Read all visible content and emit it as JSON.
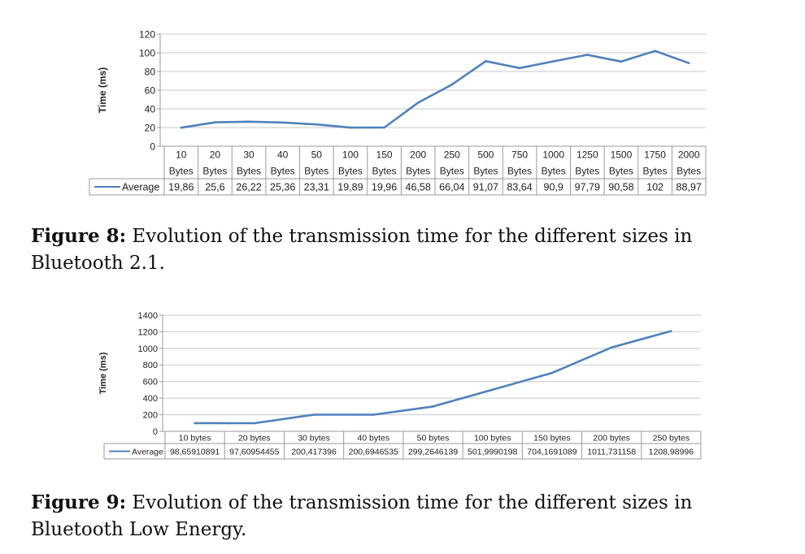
{
  "chart_data": [
    {
      "type": "line",
      "title": "",
      "ylabel": "Time (ms)",
      "xlabel": "",
      "ylim": [
        0,
        120
      ],
      "yticks": [
        0,
        20,
        40,
        60,
        80,
        100,
        120
      ],
      "grid": true,
      "legend": "data-table-left",
      "line_color": "#4f81bd",
      "categories": [
        [
          "10",
          "Bytes"
        ],
        [
          "20",
          "Bytes"
        ],
        [
          "30",
          "Bytes"
        ],
        [
          "40",
          "Bytes"
        ],
        [
          "50",
          "Bytes"
        ],
        [
          "100",
          "Bytes"
        ],
        [
          "150",
          "Bytes"
        ],
        [
          "200",
          "Bytes"
        ],
        [
          "250",
          "Bytes"
        ],
        [
          "500",
          "Bytes"
        ],
        [
          "750",
          "Bytes"
        ],
        [
          "1000",
          "Bytes"
        ],
        [
          "1250",
          "Bytes"
        ],
        [
          "1500",
          "Bytes"
        ],
        [
          "1750",
          "Bytes"
        ],
        [
          "2000",
          "Bytes"
        ]
      ],
      "series": [
        {
          "name": "Average",
          "values": [
            19.86,
            25.6,
            26.22,
            25.36,
            23.31,
            19.89,
            19.96,
            46.58,
            66.04,
            91.07,
            83.64,
            90.9,
            97.79,
            90.58,
            102,
            88.97
          ],
          "labels": [
            "19,86",
            "25,6",
            "26,22",
            "25,36",
            "23,31",
            "19,89",
            "19,96",
            "46,58",
            "66,04",
            "91,07",
            "83,64",
            "90,9",
            "97,79",
            "90,58",
            "102",
            "88,97"
          ]
        }
      ]
    },
    {
      "type": "line",
      "title": "",
      "ylabel": "Time (ms)",
      "xlabel": "",
      "ylim": [
        0,
        1400
      ],
      "yticks": [
        0,
        200,
        400,
        600,
        800,
        1000,
        1200,
        1400
      ],
      "grid": true,
      "legend": "data-table-left",
      "line_color": "#4f81bd",
      "categories": [
        [
          "10 bytes"
        ],
        [
          "20 bytes"
        ],
        [
          "30 bytes"
        ],
        [
          "40 bytes"
        ],
        [
          "50 bytes"
        ],
        [
          "100 bytes"
        ],
        [
          "150 bytes"
        ],
        [
          "200 bytes"
        ],
        [
          "250 bytes"
        ]
      ],
      "series": [
        {
          "name": "Average",
          "values": [
            98.65910891,
            97.60954455,
            200.417396,
            200.6946535,
            299.2646139,
            501.9990198,
            704.1691089,
            1011.731158,
            1208.98996
          ],
          "labels": [
            "98,65910891",
            "97,60954455",
            "200,417396",
            "200,6946535",
            "299,2646139",
            "501,9990198",
            "704,1691089",
            "1011,731158",
            "1208,98996"
          ]
        }
      ]
    }
  ],
  "captions": [
    {
      "label": "Figure 8:",
      "text": " Evolution of the transmission time for the different sizes in Bluetooth 2.1."
    },
    {
      "label": "Figure 9:",
      "text": " Evolution of the transmission time for the different sizes in Bluetooth Low Energy."
    }
  ]
}
